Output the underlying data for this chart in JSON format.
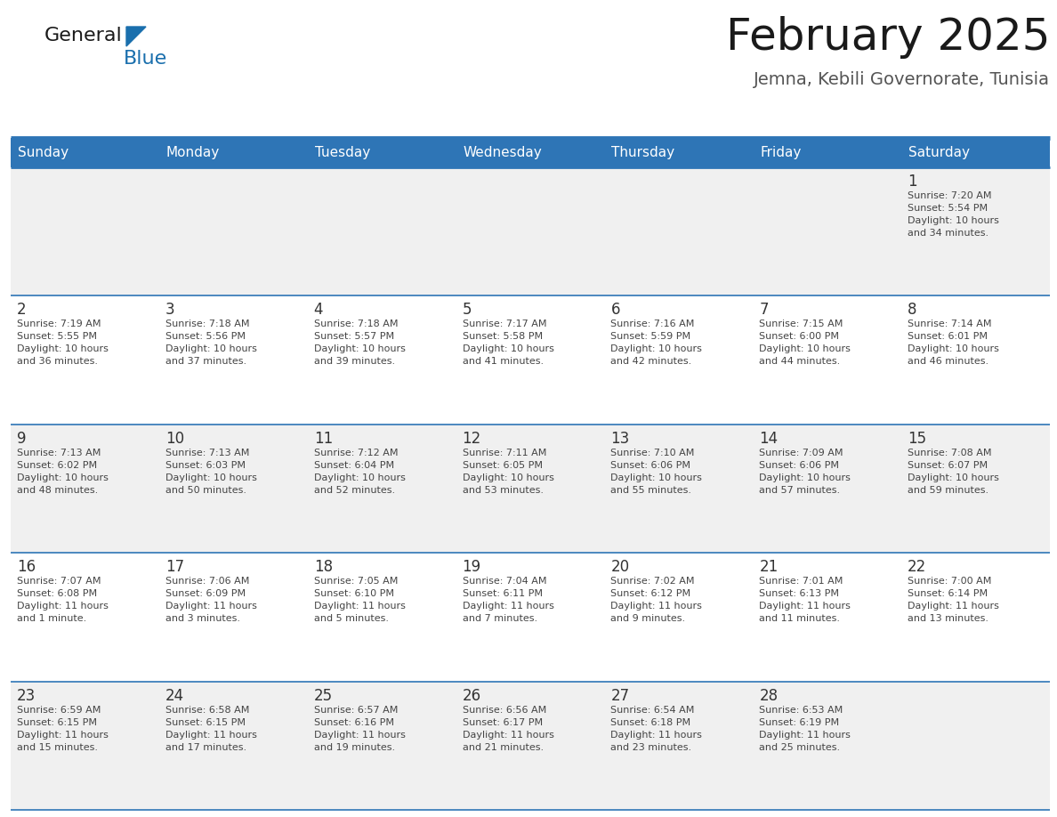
{
  "title": "February 2025",
  "subtitle": "Jemna, Kebili Governorate, Tunisia",
  "header_color": "#2e75b6",
  "header_text_color": "#ffffff",
  "day_names": [
    "Sunday",
    "Monday",
    "Tuesday",
    "Wednesday",
    "Thursday",
    "Friday",
    "Saturday"
  ],
  "bg_color": "#ffffff",
  "cell_bg_even": "#f0f0f0",
  "cell_bg_odd": "#ffffff",
  "separator_color": "#2e75b6",
  "text_color": "#333333",
  "info_text_color": "#444444",
  "title_fontsize": 36,
  "subtitle_fontsize": 14,
  "day_name_fontsize": 11,
  "day_num_fontsize": 12,
  "info_fontsize": 8,
  "days": [
    {
      "day": 1,
      "col": 6,
      "row": 0,
      "sunrise": "7:20 AM",
      "sunset": "5:54 PM",
      "daylight_h": "10 hours",
      "daylight_m": "34 minutes"
    },
    {
      "day": 2,
      "col": 0,
      "row": 1,
      "sunrise": "7:19 AM",
      "sunset": "5:55 PM",
      "daylight_h": "10 hours",
      "daylight_m": "36 minutes"
    },
    {
      "day": 3,
      "col": 1,
      "row": 1,
      "sunrise": "7:18 AM",
      "sunset": "5:56 PM",
      "daylight_h": "10 hours",
      "daylight_m": "37 minutes"
    },
    {
      "day": 4,
      "col": 2,
      "row": 1,
      "sunrise": "7:18 AM",
      "sunset": "5:57 PM",
      "daylight_h": "10 hours",
      "daylight_m": "39 minutes"
    },
    {
      "day": 5,
      "col": 3,
      "row": 1,
      "sunrise": "7:17 AM",
      "sunset": "5:58 PM",
      "daylight_h": "10 hours",
      "daylight_m": "41 minutes"
    },
    {
      "day": 6,
      "col": 4,
      "row": 1,
      "sunrise": "7:16 AM",
      "sunset": "5:59 PM",
      "daylight_h": "10 hours",
      "daylight_m": "42 minutes"
    },
    {
      "day": 7,
      "col": 5,
      "row": 1,
      "sunrise": "7:15 AM",
      "sunset": "6:00 PM",
      "daylight_h": "10 hours",
      "daylight_m": "44 minutes"
    },
    {
      "day": 8,
      "col": 6,
      "row": 1,
      "sunrise": "7:14 AM",
      "sunset": "6:01 PM",
      "daylight_h": "10 hours",
      "daylight_m": "46 minutes"
    },
    {
      "day": 9,
      "col": 0,
      "row": 2,
      "sunrise": "7:13 AM",
      "sunset": "6:02 PM",
      "daylight_h": "10 hours",
      "daylight_m": "48 minutes"
    },
    {
      "day": 10,
      "col": 1,
      "row": 2,
      "sunrise": "7:13 AM",
      "sunset": "6:03 PM",
      "daylight_h": "10 hours",
      "daylight_m": "50 minutes"
    },
    {
      "day": 11,
      "col": 2,
      "row": 2,
      "sunrise": "7:12 AM",
      "sunset": "6:04 PM",
      "daylight_h": "10 hours",
      "daylight_m": "52 minutes"
    },
    {
      "day": 12,
      "col": 3,
      "row": 2,
      "sunrise": "7:11 AM",
      "sunset": "6:05 PM",
      "daylight_h": "10 hours",
      "daylight_m": "53 minutes"
    },
    {
      "day": 13,
      "col": 4,
      "row": 2,
      "sunrise": "7:10 AM",
      "sunset": "6:06 PM",
      "daylight_h": "10 hours",
      "daylight_m": "55 minutes"
    },
    {
      "day": 14,
      "col": 5,
      "row": 2,
      "sunrise": "7:09 AM",
      "sunset": "6:06 PM",
      "daylight_h": "10 hours",
      "daylight_m": "57 minutes"
    },
    {
      "day": 15,
      "col": 6,
      "row": 2,
      "sunrise": "7:08 AM",
      "sunset": "6:07 PM",
      "daylight_h": "10 hours",
      "daylight_m": "59 minutes"
    },
    {
      "day": 16,
      "col": 0,
      "row": 3,
      "sunrise": "7:07 AM",
      "sunset": "6:08 PM",
      "daylight_h": "11 hours",
      "daylight_m": "1 minute"
    },
    {
      "day": 17,
      "col": 1,
      "row": 3,
      "sunrise": "7:06 AM",
      "sunset": "6:09 PM",
      "daylight_h": "11 hours",
      "daylight_m": "3 minutes"
    },
    {
      "day": 18,
      "col": 2,
      "row": 3,
      "sunrise": "7:05 AM",
      "sunset": "6:10 PM",
      "daylight_h": "11 hours",
      "daylight_m": "5 minutes"
    },
    {
      "day": 19,
      "col": 3,
      "row": 3,
      "sunrise": "7:04 AM",
      "sunset": "6:11 PM",
      "daylight_h": "11 hours",
      "daylight_m": "7 minutes"
    },
    {
      "day": 20,
      "col": 4,
      "row": 3,
      "sunrise": "7:02 AM",
      "sunset": "6:12 PM",
      "daylight_h": "11 hours",
      "daylight_m": "9 minutes"
    },
    {
      "day": 21,
      "col": 5,
      "row": 3,
      "sunrise": "7:01 AM",
      "sunset": "6:13 PM",
      "daylight_h": "11 hours",
      "daylight_m": "11 minutes"
    },
    {
      "day": 22,
      "col": 6,
      "row": 3,
      "sunrise": "7:00 AM",
      "sunset": "6:14 PM",
      "daylight_h": "11 hours",
      "daylight_m": "13 minutes"
    },
    {
      "day": 23,
      "col": 0,
      "row": 4,
      "sunrise": "6:59 AM",
      "sunset": "6:15 PM",
      "daylight_h": "11 hours",
      "daylight_m": "15 minutes"
    },
    {
      "day": 24,
      "col": 1,
      "row": 4,
      "sunrise": "6:58 AM",
      "sunset": "6:15 PM",
      "daylight_h": "11 hours",
      "daylight_m": "17 minutes"
    },
    {
      "day": 25,
      "col": 2,
      "row": 4,
      "sunrise": "6:57 AM",
      "sunset": "6:16 PM",
      "daylight_h": "11 hours",
      "daylight_m": "19 minutes"
    },
    {
      "day": 26,
      "col": 3,
      "row": 4,
      "sunrise": "6:56 AM",
      "sunset": "6:17 PM",
      "daylight_h": "11 hours",
      "daylight_m": "21 minutes"
    },
    {
      "day": 27,
      "col": 4,
      "row": 4,
      "sunrise": "6:54 AM",
      "sunset": "6:18 PM",
      "daylight_h": "11 hours",
      "daylight_m": "23 minutes"
    },
    {
      "day": 28,
      "col": 5,
      "row": 4,
      "sunrise": "6:53 AM",
      "sunset": "6:19 PM",
      "daylight_h": "11 hours",
      "daylight_m": "25 minutes"
    }
  ],
  "num_rows": 5,
  "num_cols": 7,
  "logo_color_general": "#1a1a1a",
  "logo_color_blue": "#1a6fad",
  "logo_triangle_color": "#1a6fad"
}
